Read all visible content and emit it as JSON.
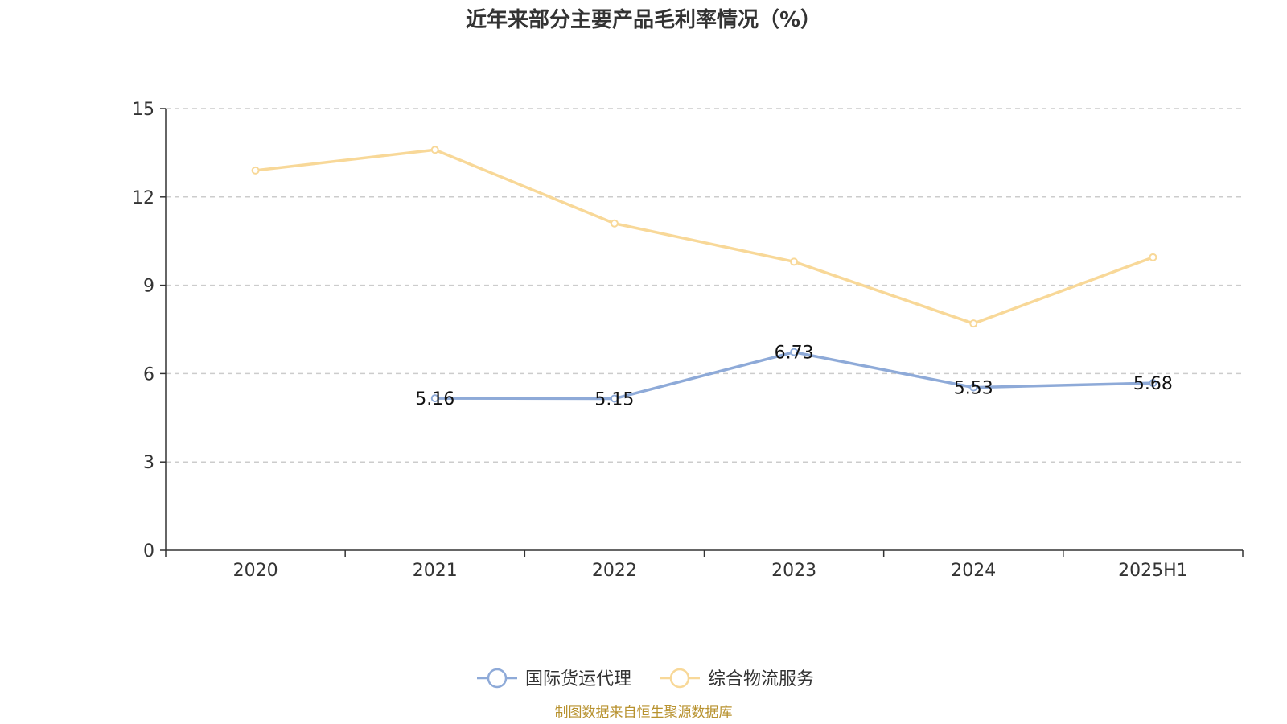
{
  "chart_data": {
    "type": "line",
    "title": "近年来部分主要产品毛利率情况（%）",
    "categories": [
      "2020",
      "2021",
      "2022",
      "2023",
      "2024",
      "2025H1"
    ],
    "ylim": [
      0,
      15
    ],
    "yticks": [
      "0",
      "3",
      "6",
      "9",
      "12",
      "15"
    ],
    "grid": true,
    "legend_position": "bottom-center",
    "series": [
      {
        "name": "国际货运代理",
        "color": "#8eaad8",
        "values": [
          null,
          5.16,
          5.15,
          6.73,
          5.53,
          5.68
        ],
        "labels": [
          "",
          "5.16",
          "5.15",
          "6.73",
          "5.53",
          "5.68"
        ]
      },
      {
        "name": "综合物流服务",
        "color": "#f8d898",
        "values": [
          12.9,
          13.6,
          11.1,
          9.8,
          7.7,
          9.95
        ],
        "labels": [
          "",
          "",
          "",
          "",
          "",
          ""
        ]
      }
    ]
  },
  "source_note": "制图数据来自恒生聚源数据库"
}
